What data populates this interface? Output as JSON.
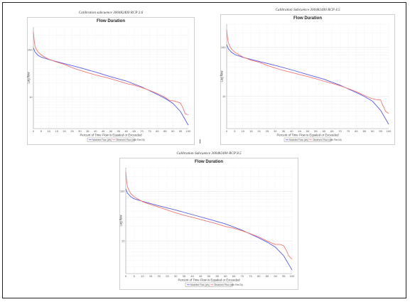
{
  "chart_data": [
    {
      "type": "line",
      "caption": "Calibration subcuence 300482400 RCP 2.6",
      "title": "Flow Duration",
      "xlabel": "Percent of Time Flow is Equaled or Exceeded",
      "ylabel": "Log flow",
      "x_ticks": [
        0,
        5,
        10,
        15,
        20,
        25,
        30,
        35,
        40,
        45,
        50,
        55,
        60,
        65,
        70,
        75,
        80,
        85,
        90,
        95,
        100
      ],
      "y_ticks": [
        {
          "value": 100,
          "label": "100"
        },
        {
          "value": 10,
          "label": "10"
        }
      ],
      "xlim": [
        0,
        100
      ],
      "ylim": [
        2.2,
        300
      ],
      "log_y": true,
      "grid": true,
      "legend_position": "bottom-center",
      "series": [
        {
          "name": "Modeled Flow (cfs)",
          "color": "#5b5be6",
          "x": [
            0,
            1,
            3,
            5,
            10,
            20,
            30,
            40,
            50,
            60,
            70,
            80,
            85,
            90,
            95,
            100
          ],
          "y": [
            110,
            90,
            76,
            70,
            62,
            51,
            42,
            34,
            27,
            22,
            16.5,
            11.5,
            9.5,
            7.5,
            5,
            2.6
          ]
        },
        {
          "name": "Observed Flow (with Fire Dt)",
          "color": "#f07878",
          "x": [
            0,
            0.5,
            1,
            2,
            3,
            5,
            8,
            10,
            15,
            20,
            25,
            30,
            35,
            40,
            45,
            50,
            55,
            60,
            65,
            70,
            75,
            80,
            85,
            88,
            90,
            93,
            95,
            96,
            97,
            98,
            100
          ],
          "y": [
            240,
            160,
            120,
            100,
            90,
            78,
            68,
            63,
            55,
            49,
            42,
            37,
            33,
            29.5,
            27,
            24.5,
            22,
            19.5,
            18,
            16,
            14,
            12,
            10,
            8.5,
            8.5,
            8,
            7.5,
            6.5,
            5.5,
            4.5,
            4.3
          ]
        }
      ]
    },
    {
      "type": "line",
      "caption": "Calibration Subcuence 300482400 RCP 4.5",
      "title": "Flow Duration",
      "xlabel": "Percent of Time Flow is Equaled or Exceeded",
      "ylabel": "Log flow",
      "x_ticks": [
        0,
        5,
        10,
        15,
        20,
        25,
        30,
        35,
        40,
        45,
        50,
        55,
        60,
        65,
        70,
        75,
        80,
        85,
        90,
        95,
        100
      ],
      "y_ticks": [
        {
          "value": 100,
          "label": "100"
        },
        {
          "value": 10,
          "label": "10"
        }
      ],
      "xlim": [
        0,
        100
      ],
      "ylim": [
        2.2,
        300
      ],
      "log_y": true,
      "grid": true,
      "legend_position": "bottom-center",
      "series": [
        {
          "name": "Modeled Flow (cfs)",
          "color": "#5b5be6",
          "x": [
            0,
            1,
            3,
            5,
            10,
            20,
            30,
            40,
            50,
            60,
            70,
            80,
            85,
            90,
            95,
            100
          ],
          "y": [
            115,
            95,
            80,
            72,
            63,
            52,
            43,
            35,
            28,
            22.5,
            17,
            12,
            10,
            8,
            5.2,
            2.7
          ]
        },
        {
          "name": "Observed Flow (with Fire Dt)",
          "color": "#f07878",
          "x": [
            0,
            0.5,
            1,
            2,
            3,
            5,
            8,
            10,
            15,
            20,
            25,
            30,
            35,
            40,
            45,
            50,
            55,
            60,
            65,
            70,
            75,
            80,
            85,
            88,
            90,
            93,
            95,
            96,
            97,
            98,
            100
          ],
          "y": [
            230,
            160,
            125,
            105,
            93,
            80,
            70,
            64,
            55,
            50,
            43,
            38,
            34,
            31,
            28,
            25.5,
            23,
            20.5,
            18.5,
            16.5,
            14.5,
            12.5,
            10.5,
            9.5,
            9,
            8.5,
            8.5,
            7,
            6,
            5,
            4.5
          ]
        }
      ]
    },
    {
      "type": "line",
      "caption": "Calibration Subcuence 300482400 RCP 8.5",
      "title": "Flow Duration",
      "xlabel": "Percent of Time Flow is Equaled or Exceeded",
      "ylabel": "Log flow",
      "x_ticks": [
        0,
        5,
        10,
        15,
        20,
        25,
        30,
        35,
        40,
        45,
        50,
        55,
        60,
        65,
        70,
        75,
        80,
        85,
        90,
        95,
        100
      ],
      "y_ticks": [
        {
          "value": 100,
          "label": "100"
        },
        {
          "value": 10,
          "label": "10"
        }
      ],
      "xlim": [
        0,
        100
      ],
      "ylim": [
        2.2,
        300
      ],
      "log_y": true,
      "grid": true,
      "legend_position": "bottom-center",
      "series": [
        {
          "name": "Modeled Flow (cfs)",
          "color": "#5b5be6",
          "x": [
            0,
            1,
            3,
            5,
            10,
            20,
            30,
            40,
            50,
            60,
            70,
            80,
            85,
            90,
            95,
            100
          ],
          "y": [
            112,
            92,
            78,
            71,
            63,
            51,
            42,
            34,
            27.5,
            22,
            16.5,
            11.5,
            9.5,
            7.5,
            5,
            2.6
          ]
        },
        {
          "name": "Observed Flow (with Fire Dt)",
          "color": "#f07878",
          "x": [
            0,
            0.5,
            1,
            2,
            3,
            5,
            8,
            10,
            15,
            20,
            25,
            30,
            35,
            40,
            45,
            50,
            55,
            60,
            65,
            70,
            75,
            80,
            85,
            88,
            90,
            93,
            95,
            96,
            97,
            98,
            100
          ],
          "y": [
            250,
            165,
            125,
            103,
            90,
            78,
            68,
            62,
            54,
            48,
            42,
            37,
            33,
            30,
            27,
            24.5,
            22,
            19.5,
            18,
            16,
            14,
            12,
            10,
            9,
            8.5,
            8.5,
            8,
            7,
            6,
            5,
            4.3
          ]
        }
      ]
    }
  ]
}
